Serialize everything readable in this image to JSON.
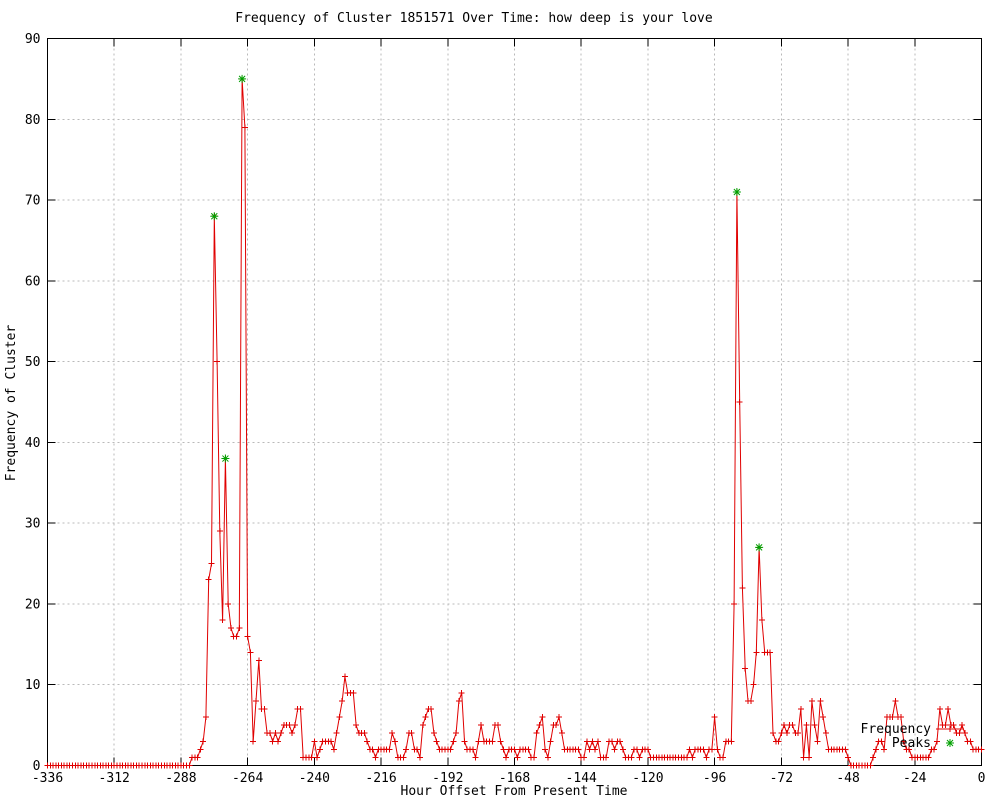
{
  "title": "Frequency of Cluster 1851571 Over Time: how deep is your love",
  "axes": {
    "xlabel": "Hour Offset From Present Time",
    "ylabel": "Frequency of Cluster"
  },
  "legend": {
    "position": "inside-bottom-right",
    "items": [
      {
        "label": "Frequency",
        "marker": "red-line-with-plus"
      },
      {
        "label": "Peaks",
        "marker": "green-asterisk"
      }
    ]
  },
  "colors": {
    "frequency_line": "#e00000",
    "peaks_marker": "#00a000",
    "grid": "#b9b9b9",
    "axis": "#000000",
    "text": "#000000",
    "background": "#ffffff"
  },
  "chart_data": {
    "type": "line",
    "title": "Frequency of Cluster 1851571 Over Time: how deep is your love",
    "xlabel": "Hour Offset From Present Time",
    "ylabel": "Frequency of Cluster",
    "xlim": [
      -336,
      0
    ],
    "ylim": [
      0,
      90
    ],
    "xticks": [
      -336,
      -312,
      -288,
      -264,
      -240,
      -216,
      -192,
      -168,
      -144,
      -120,
      -96,
      -72,
      -48,
      -24,
      0
    ],
    "yticks": [
      0,
      10,
      20,
      30,
      40,
      50,
      60,
      70,
      80,
      90
    ],
    "grid": true,
    "legend_position": "bottom-right",
    "series": [
      {
        "name": "Frequency",
        "marker": "plus",
        "color": "#e00000",
        "x_start": -336,
        "x_step": 1,
        "values": [
          0,
          0,
          0,
          0,
          0,
          0,
          0,
          0,
          0,
          0,
          0,
          0,
          0,
          0,
          0,
          0,
          0,
          0,
          0,
          0,
          0,
          0,
          0,
          0,
          0,
          0,
          0,
          0,
          0,
          0,
          0,
          0,
          0,
          0,
          0,
          0,
          0,
          0,
          0,
          0,
          0,
          0,
          0,
          0,
          0,
          0,
          0,
          0,
          0,
          0,
          0,
          0,
          1,
          1,
          1,
          2,
          3,
          6,
          23,
          25,
          68,
          50,
          29,
          18,
          38,
          20,
          17,
          16,
          16,
          17,
          85,
          79,
          16,
          14,
          3,
          8,
          13,
          7,
          7,
          4,
          4,
          3,
          4,
          3,
          4,
          5,
          5,
          5,
          4,
          5,
          7,
          7,
          1,
          1,
          1,
          1,
          3,
          1,
          2,
          3,
          3,
          3,
          3,
          2,
          4,
          6,
          8,
          11,
          9,
          9,
          9,
          5,
          4,
          4,
          4,
          3,
          2,
          2,
          1,
          2,
          2,
          2,
          2,
          2,
          4,
          3,
          1,
          1,
          1,
          2,
          4,
          4,
          2,
          2,
          1,
          5,
          6,
          7,
          7,
          4,
          3,
          2,
          2,
          2,
          2,
          2,
          3,
          4,
          8,
          9,
          3,
          2,
          2,
          2,
          1,
          3,
          5,
          3,
          3,
          3,
          3,
          5,
          5,
          3,
          2,
          1,
          2,
          2,
          2,
          1,
          2,
          2,
          2,
          2,
          1,
          1,
          4,
          5,
          6,
          2,
          1,
          3,
          5,
          5,
          6,
          4,
          2,
          2,
          2,
          2,
          2,
          2,
          1,
          1,
          3,
          2,
          3,
          2,
          3,
          1,
          1,
          1,
          3,
          3,
          2,
          3,
          3,
          2,
          1,
          1,
          1,
          2,
          2,
          1,
          2,
          2,
          2,
          1,
          1,
          1,
          1,
          1,
          1,
          1,
          1,
          1,
          1,
          1,
          1,
          1,
          1,
          2,
          1,
          2,
          2,
          2,
          2,
          1,
          2,
          2,
          6,
          2,
          1,
          1,
          3,
          3,
          3,
          20,
          71,
          45,
          22,
          12,
          8,
          8,
          10,
          14,
          27,
          18,
          14,
          14,
          14,
          4,
          3,
          3,
          4,
          5,
          4,
          5,
          5,
          4,
          4,
          7,
          1,
          5,
          1,
          8,
          5,
          3,
          8,
          6,
          4,
          2,
          2,
          2,
          2,
          2,
          2,
          2,
          1,
          0,
          0,
          0,
          0,
          0,
          0,
          0,
          0,
          1,
          2,
          3,
          3,
          2,
          6,
          6,
          6,
          8,
          6,
          6,
          3,
          2,
          2,
          1,
          1,
          1,
          1,
          1,
          1,
          1,
          2,
          2,
          3,
          7,
          5,
          5,
          7,
          5,
          5,
          4,
          4,
          5,
          4,
          3,
          3,
          2,
          2,
          2,
          2
        ]
      },
      {
        "name": "Peaks",
        "marker": "asterisk",
        "color": "#00a000",
        "points": [
          [
            -276,
            68
          ],
          [
            -272,
            38
          ],
          [
            -266,
            85
          ],
          [
            -88,
            71
          ],
          [
            -80,
            27
          ]
        ]
      }
    ]
  }
}
